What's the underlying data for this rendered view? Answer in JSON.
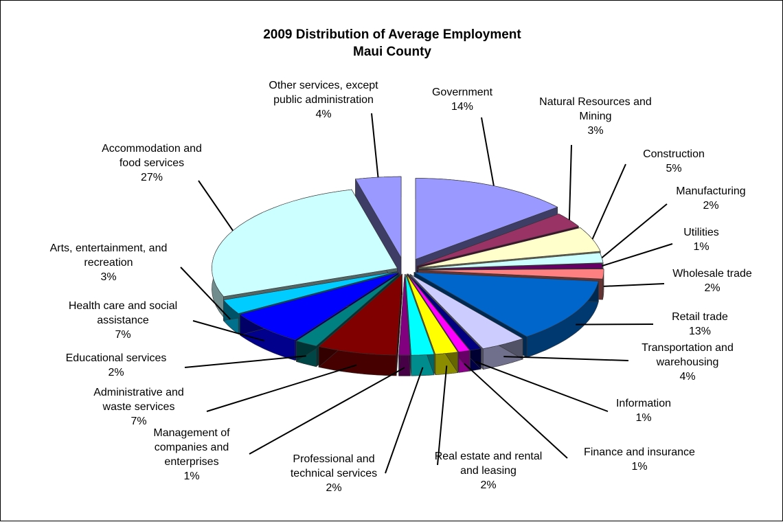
{
  "chart_data": {
    "type": "pie",
    "title": "2009 Distribution of Average Employment",
    "subtitle": "Maui County",
    "categories": [
      "Government",
      "Natural Resources and Mining",
      "Construction",
      "Manufacturing",
      "Utilities",
      "Wholesale trade",
      "Retail trade",
      "Transportation and warehousing",
      "Information",
      "Finance and insurance",
      "Real estate and rental and leasing",
      "Professional and technical services",
      "Management of companies and enterprises",
      "Administrative and waste services",
      "Educational services",
      "Health care and social assistance",
      "Arts, entertainment, and recreation",
      "Accommodation and food services",
      "Other services, except public administration"
    ],
    "values": [
      14,
      3,
      5,
      2,
      1,
      2,
      13,
      4,
      1,
      1,
      2,
      2,
      1,
      7,
      2,
      7,
      3,
      27,
      4
    ],
    "labels": [
      {
        "lines": [
          "Government",
          "14%"
        ]
      },
      {
        "lines": [
          "Natural Resources and",
          "Mining",
          "3%"
        ]
      },
      {
        "lines": [
          "Construction",
          "5%"
        ]
      },
      {
        "lines": [
          "Manufacturing",
          "2%"
        ]
      },
      {
        "lines": [
          "Utilities",
          "1%"
        ]
      },
      {
        "lines": [
          "Wholesale trade",
          "2%"
        ]
      },
      {
        "lines": [
          "Retail trade",
          "13%"
        ]
      },
      {
        "lines": [
          "Transportation and",
          "warehousing",
          "4%"
        ]
      },
      {
        "lines": [
          "Information",
          "1%"
        ]
      },
      {
        "lines": [
          "Finance and insurance",
          "1%"
        ]
      },
      {
        "lines": [
          "Real estate and rental",
          "and leasing",
          "2%"
        ]
      },
      {
        "lines": [
          "Professional and",
          "technical services",
          "2%"
        ]
      },
      {
        "lines": [
          "Management of",
          "companies and",
          "enterprises",
          "1%"
        ]
      },
      {
        "lines": [
          "Administrative and",
          "waste services",
          "7%"
        ]
      },
      {
        "lines": [
          "Educational services",
          "2%"
        ]
      },
      {
        "lines": [
          "Health care and social",
          "assistance",
          "7%"
        ]
      },
      {
        "lines": [
          "Arts, entertainment, and",
          "recreation",
          "3%"
        ]
      },
      {
        "lines": [
          "Accommodation and",
          "food services",
          "27%"
        ]
      },
      {
        "lines": [
          "Other services, except",
          "public administration",
          "4%"
        ]
      }
    ],
    "colors": [
      "#9999ff",
      "#993366",
      "#ffffcc",
      "#ccffff",
      "#660066",
      "#ff8080",
      "#0066cc",
      "#ccccff",
      "#000080",
      "#ff00ff",
      "#ffff00",
      "#00ffff",
      "#800080",
      "#800000",
      "#008080",
      "#0000ff",
      "#00ccff",
      "#ccffff",
      "#9999ff"
    ],
    "style": "3d-exploded-pie"
  }
}
